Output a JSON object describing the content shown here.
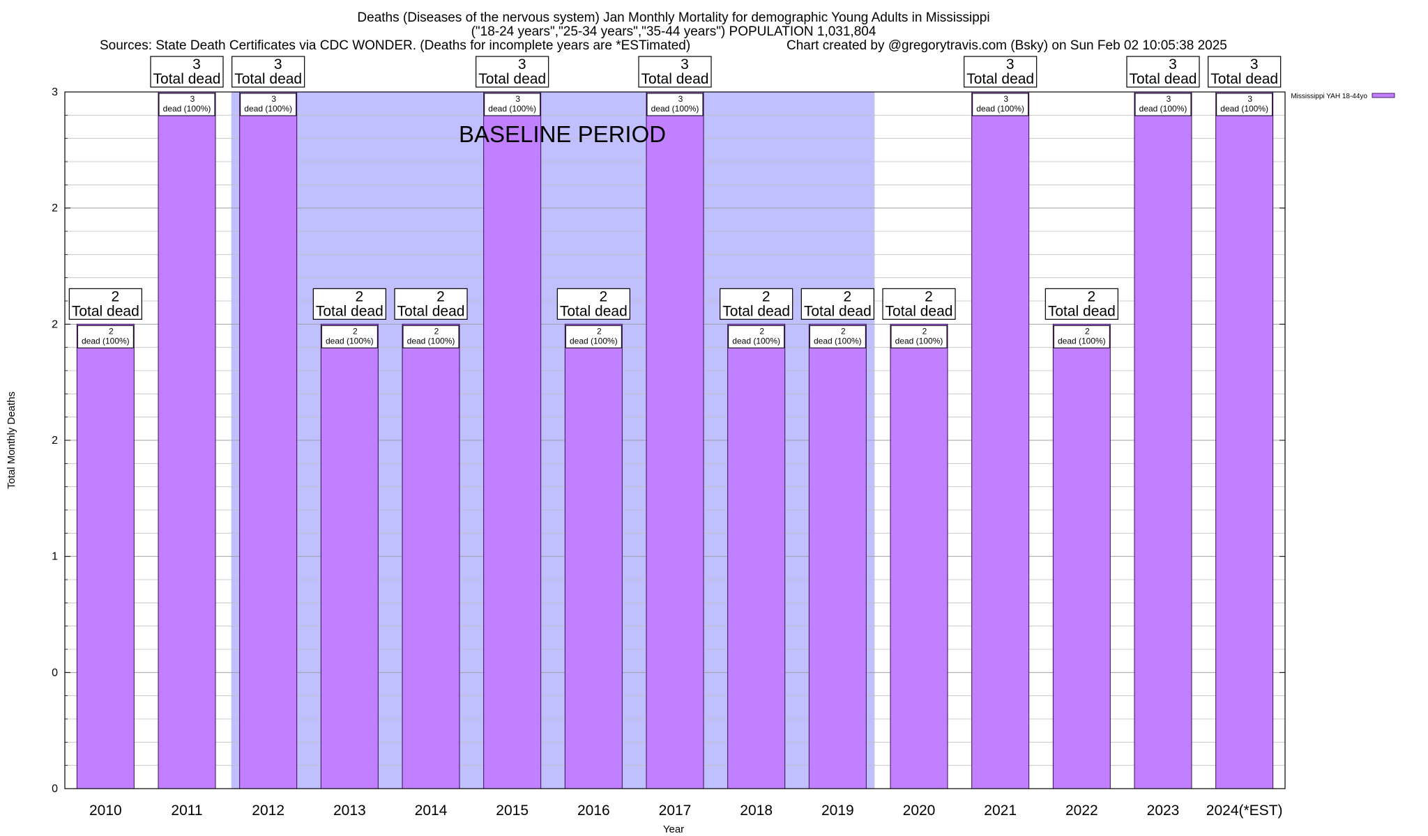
{
  "chart_data": {
    "type": "bar",
    "title_lines": [
      "Deaths (Diseases of the nervous system) Jan Monthly Mortality for demographic Young Adults in Mississippi",
      "(\"18-24 years\",\"25-34 years\",\"35-44 years\") POPULATION 1,031,804"
    ],
    "sources": "Sources: State Death Certificates via CDC WONDER. (Deaths for incomplete years are *ESTimated)",
    "credit": "Chart created by @gregorytravis.com (Bsky) on Sun Feb 02 10:05:38 2025",
    "xlabel": "Year",
    "ylabel": "Total Monthly Deaths",
    "categories": [
      "2010",
      "2011",
      "2012",
      "2013",
      "2014",
      "2015",
      "2016",
      "2017",
      "2018",
      "2019",
      "2020",
      "2021",
      "2022",
      "2023",
      "2024(*EST)"
    ],
    "series": [
      {
        "name": "Mississippi YAH 18-44yo",
        "color": "#c080ff",
        "values": [
          2,
          3,
          3,
          2,
          2,
          3,
          2,
          3,
          2,
          2,
          2,
          3,
          2,
          3,
          3
        ]
      }
    ],
    "total_label_suffix": "Total dead",
    "inner_label_suffix": "dead (100%)",
    "ylim": [
      0,
      3
    ],
    "y_tick_values": [
      0,
      0.5,
      1,
      1.5,
      2,
      2.5,
      3
    ],
    "y_tick_labels": [
      "0",
      "0",
      "1",
      "2",
      "2",
      "2",
      "3"
    ],
    "baseline": {
      "label": "BASELINE PERIOD",
      "from": "2012",
      "to": "2019",
      "color": "#c0c0ff"
    },
    "grid": true,
    "legend_position": "top-right"
  }
}
